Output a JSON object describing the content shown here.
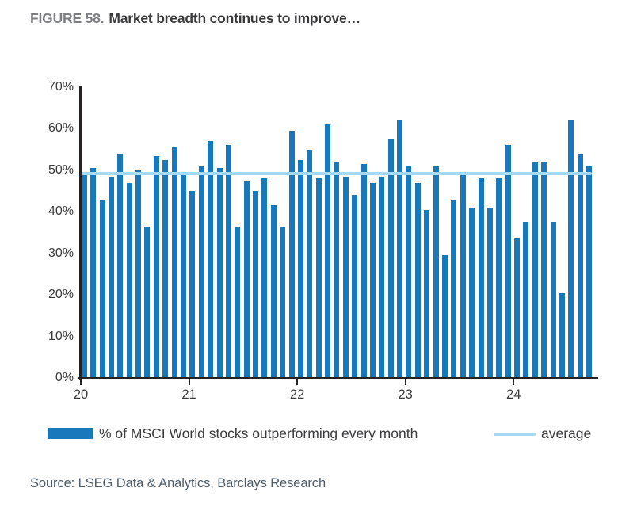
{
  "figure": {
    "label": "FIGURE 58.",
    "title": "Market breadth continues to improve…"
  },
  "chart_data": {
    "type": "bar",
    "title": "Market breadth continues to improve…",
    "series_name": "% of MSCI World stocks outperforming every month",
    "x": [
      "2020-01",
      "2020-02",
      "2020-03",
      "2020-04",
      "2020-05",
      "2020-06",
      "2020-07",
      "2020-08",
      "2020-09",
      "2020-10",
      "2020-11",
      "2020-12",
      "2021-01",
      "2021-02",
      "2021-03",
      "2021-04",
      "2021-05",
      "2021-06",
      "2021-07",
      "2021-08",
      "2021-09",
      "2021-10",
      "2021-11",
      "2021-12",
      "2022-01",
      "2022-02",
      "2022-03",
      "2022-04",
      "2022-05",
      "2022-06",
      "2022-07",
      "2022-08",
      "2022-09",
      "2022-10",
      "2022-11",
      "2022-12",
      "2023-01",
      "2023-02",
      "2023-03",
      "2023-04",
      "2023-05",
      "2023-06",
      "2023-07",
      "2023-08",
      "2023-09",
      "2023-10",
      "2023-11",
      "2023-12",
      "2024-01",
      "2024-02",
      "2024-03",
      "2024-04",
      "2024-05",
      "2024-06",
      "2024-07",
      "2024-08",
      "2024-09"
    ],
    "values": [
      49.5,
      50.5,
      43,
      48.5,
      54,
      47,
      50,
      36.5,
      53.5,
      52.5,
      55.5,
      49.5,
      45,
      51,
      57,
      50.5,
      56,
      36.5,
      47.5,
      45,
      48,
      41.5,
      36.5,
      59.5,
      52.5,
      55,
      48,
      61,
      52,
      48.5,
      44,
      51.5,
      47,
      48.5,
      57.5,
      62,
      51,
      47,
      40.5,
      51,
      29.5,
      43,
      49,
      41,
      48,
      41,
      48,
      56,
      33.5,
      37.5,
      52,
      52,
      37.5,
      20.5,
      62,
      54,
      51
    ],
    "average": 49.3,
    "ylim": [
      0,
      70
    ],
    "ytick_labels": [
      "70%",
      "60%",
      "50%",
      "40%",
      "30%",
      "20%",
      "10%",
      "0%"
    ],
    "xtick_labels": [
      "20",
      "21",
      "22",
      "23",
      "24"
    ],
    "grid": "off",
    "legend_position": "bottom",
    "bar_color": "#1878ba",
    "average_color": "#a5daf6"
  },
  "legend": {
    "bars_label": "% of MSCI World stocks outperforming every month",
    "average_label": "average"
  },
  "source": "Source: LSEG Data & Analytics, Barclays Research"
}
